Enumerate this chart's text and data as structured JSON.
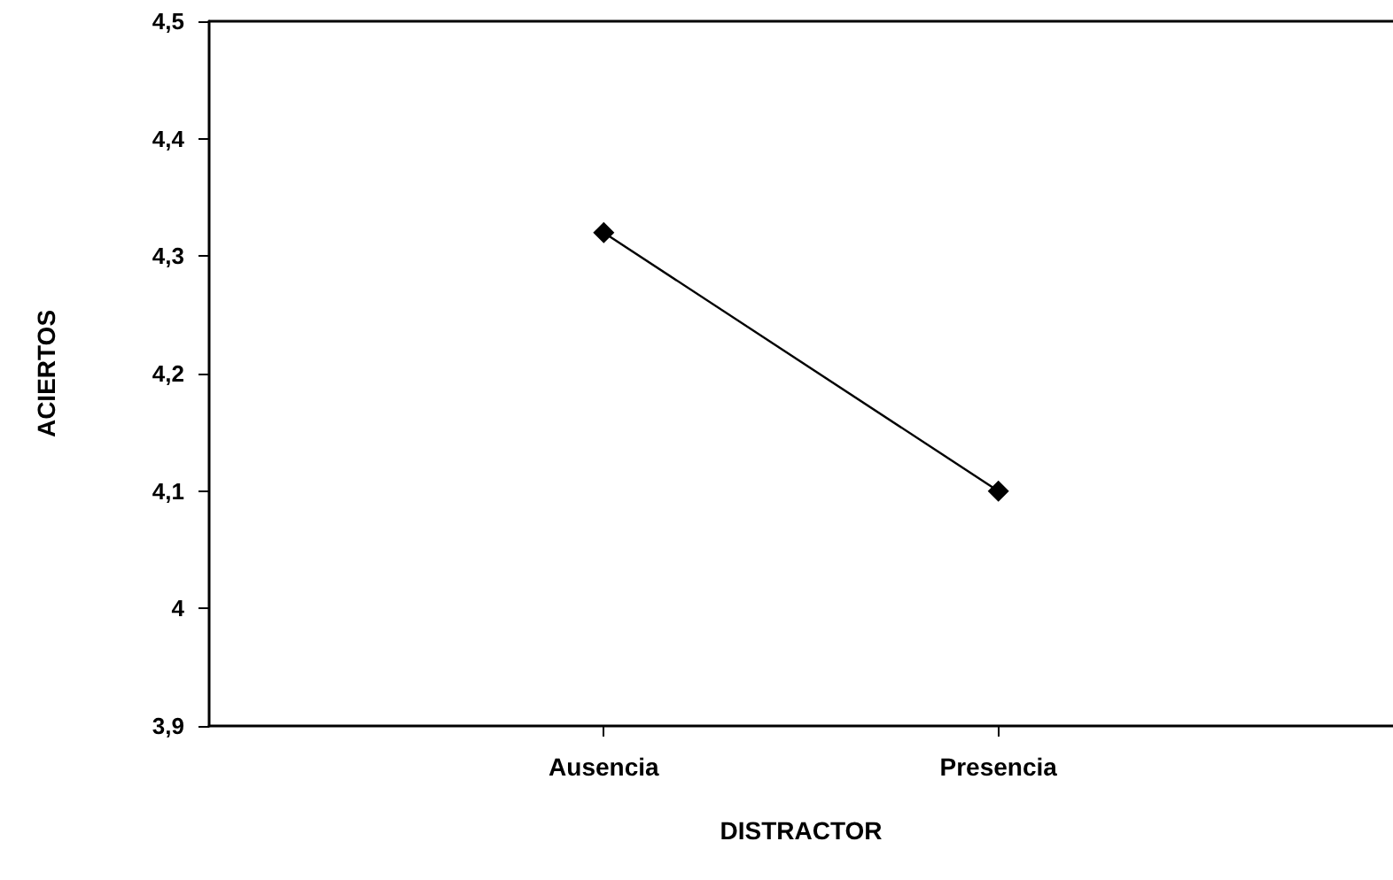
{
  "chart_data": {
    "type": "line",
    "xlabel": "DISTRACTOR",
    "ylabel": "ACIERTOS",
    "categories": [
      "Ausencia",
      "Presencia"
    ],
    "series": [
      {
        "color": "#000000",
        "values": [
          4.32,
          4.1
        ]
      }
    ],
    "ylim": [
      3.9,
      4.5
    ],
    "yticks": [
      {
        "value": 3.9,
        "label": "3,9"
      },
      4,
      {
        "value": 4.1,
        "label": "4,1"
      },
      {
        "value": 4.2,
        "label": "4,2"
      },
      {
        "value": 4.3,
        "label": "4,3"
      },
      {
        "value": 4.4,
        "label": "4,4"
      },
      {
        "value": 4.5,
        "label": "4,5"
      }
    ],
    "grid": false,
    "marker": "diamond",
    "line_style": "solid"
  }
}
